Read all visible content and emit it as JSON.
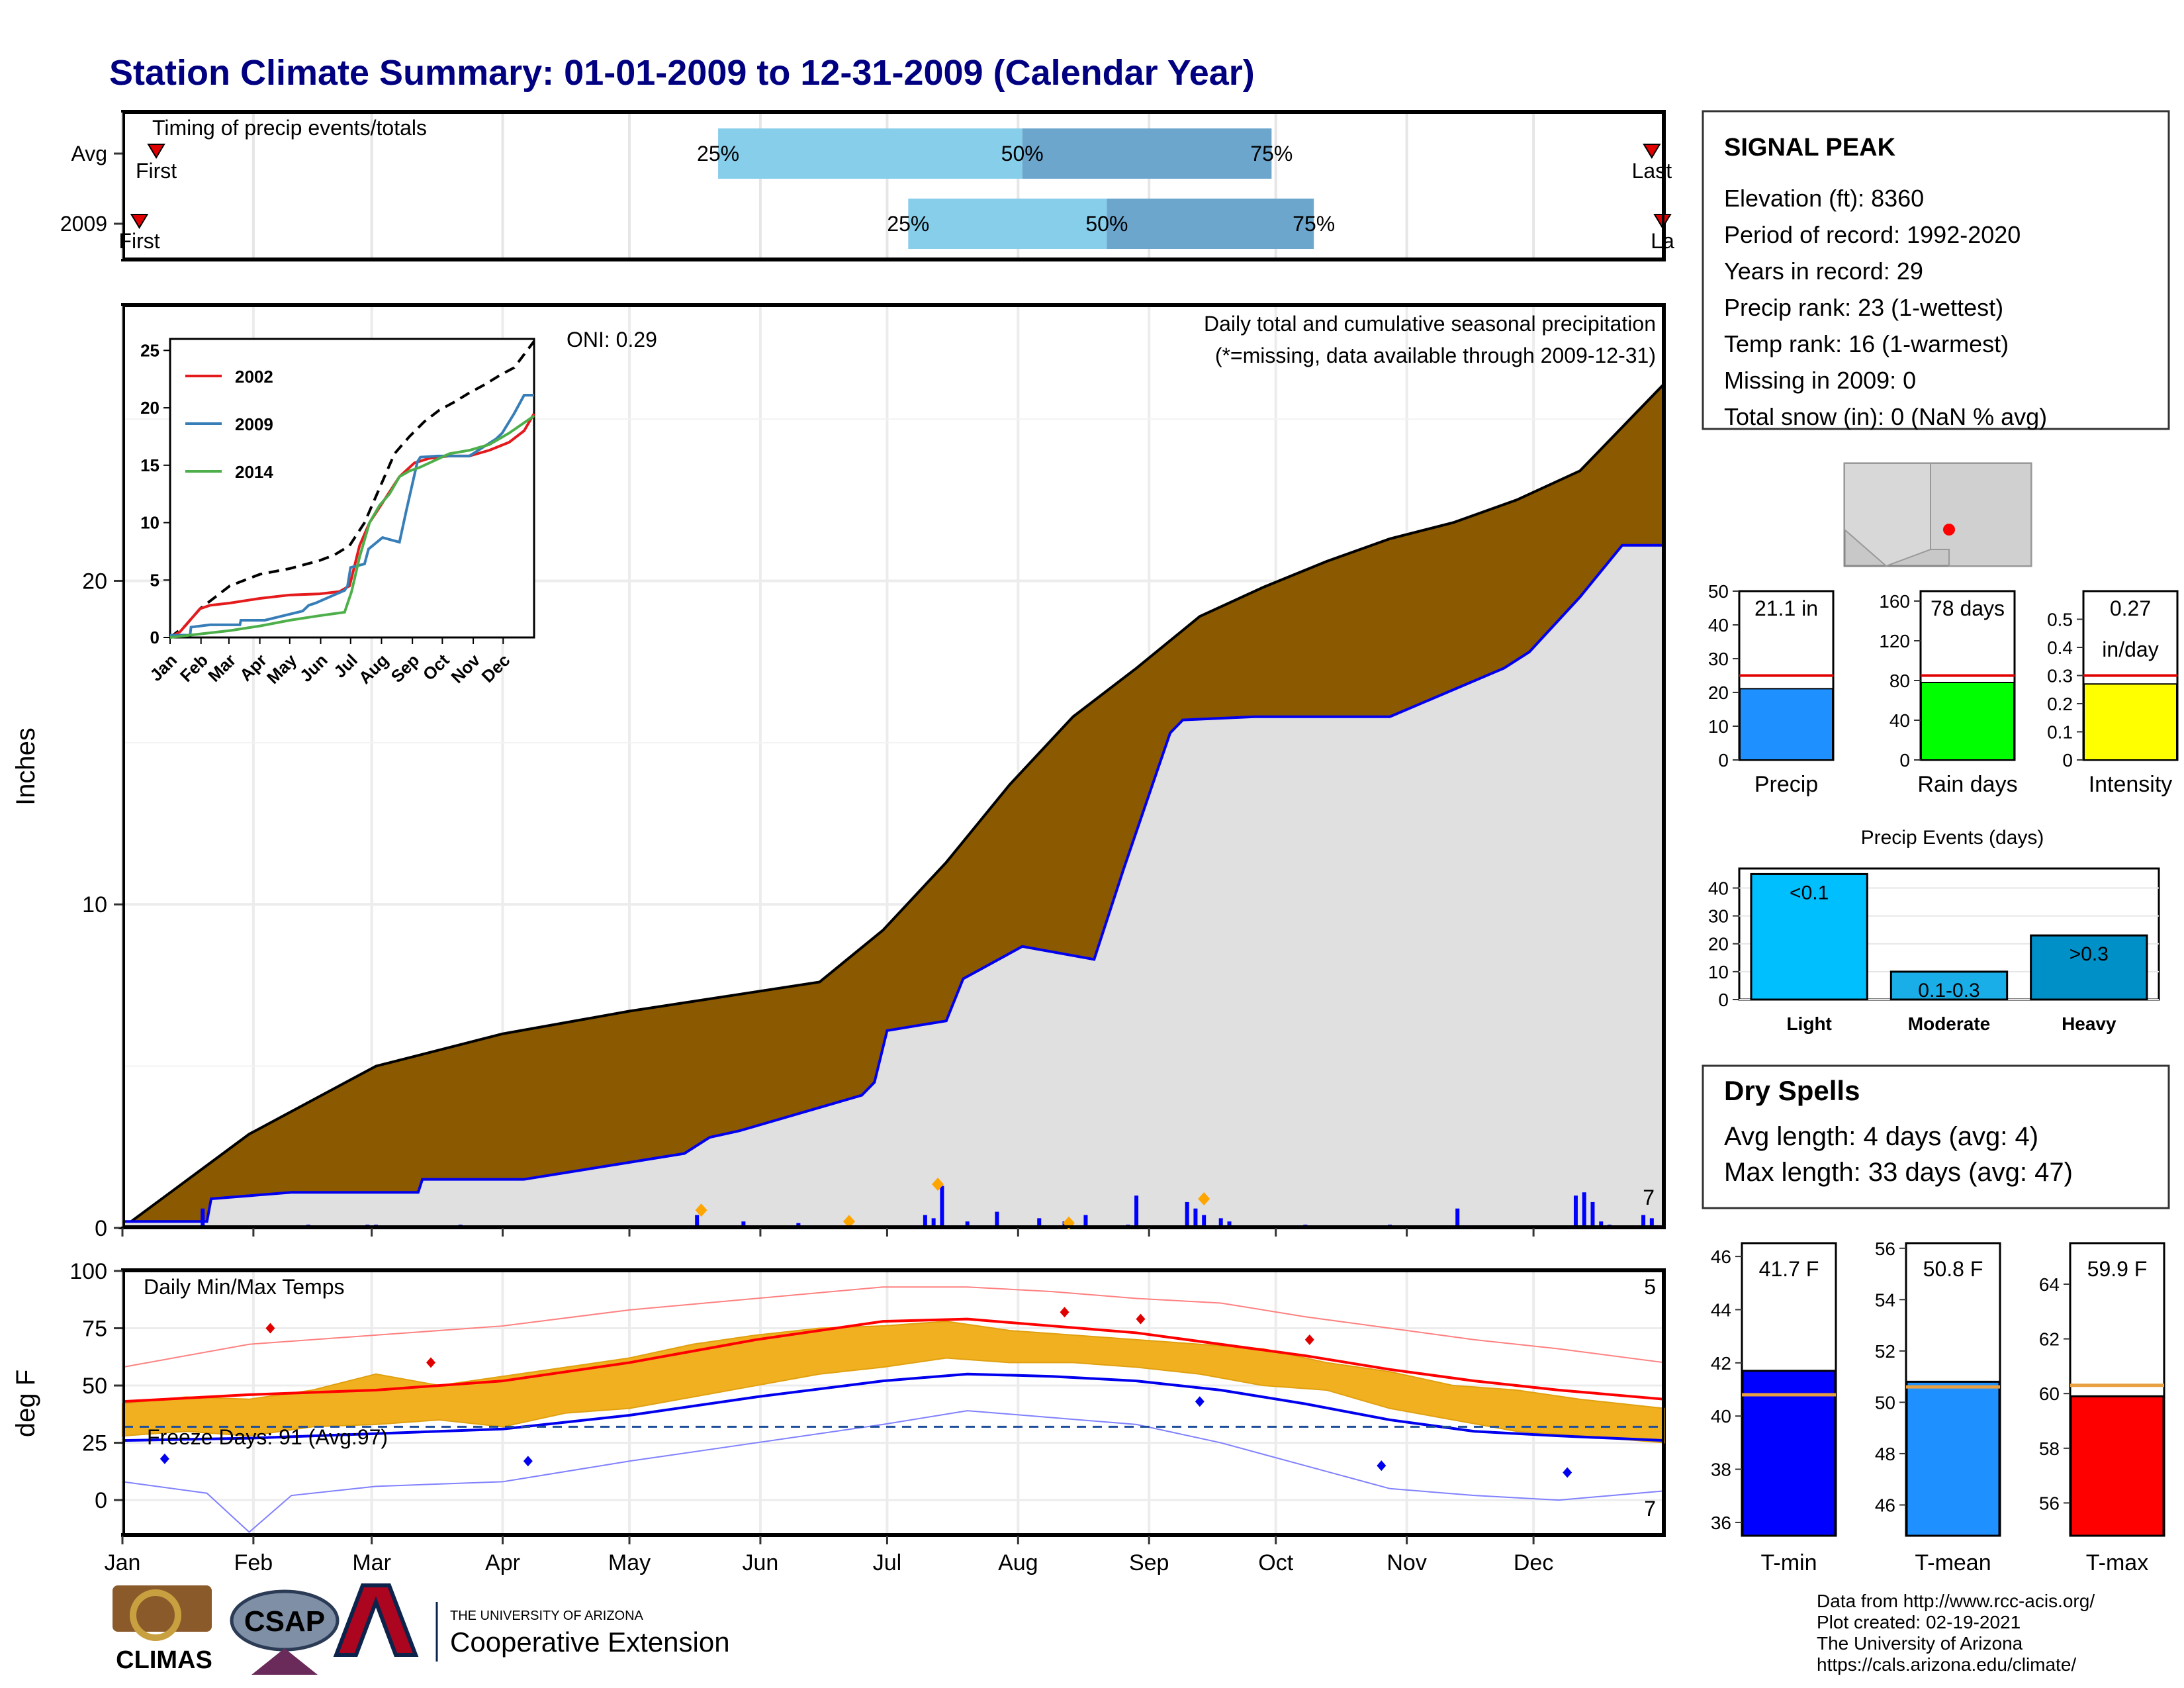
{
  "header": {
    "title": "Station Climate Summary: 01-01-2009 to 12-31-2009 (Calendar Year)"
  },
  "timing": {
    "title": "Timing of precip events/totals",
    "rows": [
      {
        "label": "Avg",
        "first_label": "First",
        "last_label": "Last",
        "first_doy": 8,
        "last_doy": 362,
        "p25_doy": 141,
        "p50_doy": 213,
        "p75_doy": 272,
        "p25_label": "25%",
        "p50_label": "50%",
        "p75_label": "75%"
      },
      {
        "label": "2009",
        "first_label": "First",
        "last_label": "La",
        "first_doy": 4,
        "last_doy": 368,
        "p25_doy": 186,
        "p50_doy": 233,
        "p75_doy": 282,
        "p25_label": "25%",
        "p50_label": "50%",
        "p75_label": "75%"
      }
    ]
  },
  "months": [
    "Jan",
    "Feb",
    "Mar",
    "Apr",
    "May",
    "Jun",
    "Jul",
    "Aug",
    "Sep",
    "Oct",
    "Nov",
    "Dec"
  ],
  "month_start_doy": [
    0,
    31,
    59,
    90,
    120,
    151,
    181,
    212,
    243,
    273,
    304,
    334
  ],
  "precip_panel": {
    "ylabel": "Inches",
    "yticks": [
      0,
      10,
      20
    ],
    "ylim": [
      0,
      28.5
    ],
    "title": "Daily total and cumulative seasonal precipitation",
    "missing_note": "(*=missing, data available through 2009-12-31)",
    "oni_label": "ONI: 0.29",
    "corner_count": "7",
    "avg_color": "#8B5A00",
    "obs_color": "#0000EE"
  },
  "chart_data": [
    {
      "type": "area",
      "name": "cumulative-precipitation",
      "x_unit": "day of year",
      "y_unit": "inches",
      "series": [
        {
          "name": "",
          "x": [
            0,
            30,
            60,
            90,
            120,
            150,
            165,
            180,
            195,
            210,
            225,
            240,
            255,
            270,
            285,
            300,
            315,
            330,
            345,
            365
          ],
          "values": [
            0,
            2.9,
            5.0,
            6.0,
            6.7,
            7.3,
            7.6,
            9.2,
            11.3,
            13.7,
            15.8,
            17.3,
            18.9,
            19.8,
            20.6,
            21.3,
            21.8,
            22.5,
            23.4,
            26.1
          ]
        },
        {
          "name": "",
          "x": [
            0,
            20,
            21,
            40,
            50,
            70,
            71,
            95,
            133,
            139,
            146,
            175,
            178,
            181,
            195,
            199,
            213,
            230,
            237,
            248,
            251,
            268,
            300,
            327,
            333,
            345,
            355,
            365
          ],
          "values": [
            0.2,
            0.2,
            0.9,
            1.1,
            1.1,
            1.1,
            1.5,
            1.5,
            2.3,
            2.8,
            3.0,
            4.1,
            4.5,
            6.1,
            6.4,
            7.7,
            8.7,
            8.3,
            11.1,
            15.3,
            15.7,
            15.8,
            15.8,
            17.3,
            17.8,
            19.5,
            21.1,
            21.1
          ]
        }
      ],
      "daily_totals": {
        "x": [
          19,
          44,
          46,
          58,
          60,
          80,
          88,
          110,
          136,
          147,
          160,
          190,
          192,
          194,
          200,
          207,
          217,
          223,
          228,
          238,
          240,
          252,
          254,
          256,
          260,
          262,
          280,
          300,
          316,
          344,
          346,
          348,
          350,
          352,
          360,
          362
        ],
        "values": [
          0.6,
          0.1,
          0.05,
          0.1,
          0.1,
          0.1,
          0.05,
          0.05,
          0.4,
          0.2,
          0.15,
          0.4,
          0.3,
          1.3,
          0.2,
          0.5,
          0.3,
          0.2,
          0.4,
          0.1,
          1.0,
          0.8,
          0.6,
          0.4,
          0.3,
          0.2,
          0.1,
          0.1,
          0.6,
          1.0,
          1.1,
          0.8,
          0.2,
          0.1,
          0.4,
          0.3
        ]
      },
      "daily_markers": {
        "x": [
          137,
          172,
          193,
          224,
          256
        ],
        "values": [
          0.55,
          0.2,
          1.35,
          0.15,
          0.9
        ]
      }
    },
    {
      "type": "line",
      "name": "inset-cumulative-comparison",
      "categories": [
        "Jan",
        "Feb",
        "Mar",
        "Apr",
        "May",
        "Jun",
        "Jul",
        "Aug",
        "Sep",
        "Oct",
        "Nov",
        "Dec"
      ],
      "ylim": [
        0,
        26
      ],
      "yticks": [
        0,
        5,
        10,
        15,
        20,
        25
      ],
      "series": [
        {
          "name": "",
          "x": [
            0,
            15,
            30,
            45,
            60,
            90,
            120,
            150,
            165,
            180,
            195,
            210,
            225,
            240,
            255,
            270,
            285,
            300,
            315,
            330,
            345,
            365
          ],
          "values": [
            0,
            1,
            2.5,
            3.5,
            4.5,
            5.5,
            6,
            6.7,
            7.2,
            8,
            10,
            13,
            16,
            17.5,
            18.8,
            19.8,
            20.5,
            21.3,
            22,
            22.8,
            23.5,
            25.8
          ]
        },
        {
          "name": "2002",
          "x": [
            0,
            10,
            20,
            30,
            40,
            60,
            90,
            120,
            150,
            170,
            180,
            190,
            200,
            215,
            230,
            245,
            260,
            280,
            300,
            320,
            340,
            355,
            365
          ],
          "values": [
            0,
            0.5,
            1.5,
            2.5,
            2.8,
            3.0,
            3.4,
            3.7,
            3.8,
            4.0,
            4.5,
            8,
            10,
            12,
            14,
            15.2,
            15.6,
            15.8,
            15.8,
            16.3,
            17.0,
            18.0,
            19.5
          ]
        },
        {
          "name": "2009",
          "x": [
            0,
            20,
            21,
            40,
            70,
            71,
            95,
            133,
            139,
            146,
            175,
            178,
            181,
            195,
            199,
            213,
            230,
            237,
            248,
            251,
            268,
            300,
            327,
            333,
            345,
            355,
            365
          ],
          "values": [
            0.2,
            0.2,
            0.9,
            1.1,
            1.1,
            1.5,
            1.5,
            2.3,
            2.8,
            3.0,
            4.1,
            4.5,
            6.1,
            6.4,
            7.7,
            8.7,
            8.3,
            11.1,
            15.3,
            15.7,
            15.8,
            15.8,
            17.3,
            17.8,
            19.5,
            21.1,
            21.1
          ]
        },
        {
          "name": "2014",
          "x": [
            0,
            30,
            60,
            90,
            120,
            150,
            175,
            182,
            190,
            200,
            210,
            220,
            230,
            240,
            250,
            260,
            280,
            300,
            320,
            340,
            365
          ],
          "values": [
            0,
            0.3,
            0.6,
            1.0,
            1.5,
            1.9,
            2.2,
            4,
            7,
            10,
            11.5,
            12.5,
            14,
            14.5,
            14.8,
            15.2,
            16,
            16.3,
            16.8,
            17.8,
            19.3
          ]
        }
      ],
      "legend_placement": "top-left"
    },
    {
      "type": "line",
      "name": "daily-temperatures",
      "title": "Daily Min/Max Temps",
      "ylabel": "deg F",
      "ylim": [
        -15,
        100
      ],
      "yticks": [
        0,
        25,
        50,
        75,
        100
      ],
      "freeze_label": "Freeze Days: 91 (Avg:97)",
      "freeze_line": 32,
      "max_count": "5",
      "min_count": "7",
      "series": [
        {
          "name": "",
          "x": [
            0,
            30,
            60,
            90,
            120,
            150,
            180,
            200,
            220,
            240,
            260,
            280,
            300,
            320,
            340,
            365
          ],
          "values": [
            43,
            46,
            48,
            52,
            60,
            70,
            78,
            79,
            76,
            73,
            68,
            63,
            57,
            52,
            48,
            44
          ]
        },
        {
          "name": "",
          "x": [
            0,
            30,
            60,
            90,
            120,
            150,
            180,
            200,
            220,
            240,
            260,
            280,
            300,
            320,
            340,
            365
          ],
          "values": [
            26,
            27,
            29,
            31,
            37,
            45,
            52,
            55,
            54,
            52,
            48,
            42,
            35,
            30,
            28,
            26
          ]
        },
        {
          "name": "",
          "x": [
            0,
            30,
            60,
            90,
            120,
            150,
            180,
            200,
            220,
            240,
            260,
            280,
            300,
            320,
            340,
            365
          ],
          "values": [
            58,
            68,
            72,
            76,
            83,
            88,
            93,
            93,
            91,
            88,
            86,
            80,
            75,
            70,
            66,
            60
          ]
        },
        {
          "name": "",
          "x": [
            0,
            20,
            30,
            40,
            60,
            90,
            120,
            150,
            180,
            200,
            220,
            240,
            260,
            280,
            300,
            320,
            340,
            365
          ],
          "values": [
            8,
            3,
            -14,
            2,
            6,
            8,
            17,
            25,
            33,
            39,
            36,
            33,
            25,
            15,
            5,
            2,
            0,
            4
          ]
        }
      ],
      "bar_band": {
        "x": [
          0,
          15,
          30,
          45,
          60,
          75,
          90,
          105,
          120,
          135,
          150,
          165,
          180,
          195,
          210,
          225,
          240,
          255,
          270,
          285,
          300,
          315,
          330,
          345,
          365
        ],
        "low": [
          28,
          30,
          28,
          32,
          33,
          35,
          32,
          38,
          40,
          45,
          50,
          55,
          58,
          62,
          60,
          60,
          58,
          55,
          50,
          48,
          40,
          35,
          30,
          28,
          25
        ],
        "high": [
          42,
          45,
          44,
          48,
          55,
          50,
          54,
          58,
          62,
          68,
          72,
          75,
          76,
          78,
          74,
          72,
          70,
          68,
          66,
          60,
          56,
          50,
          48,
          44,
          40
        ]
      },
      "max_markers": {
        "x": [
          35,
          73,
          223,
          241,
          281
        ],
        "values": [
          75,
          60,
          82,
          79,
          70
        ]
      },
      "min_markers": {
        "x": [
          10,
          96,
          255,
          298,
          342
        ],
        "values": [
          18,
          17,
          43,
          15,
          12
        ]
      }
    }
  ],
  "station": {
    "name": "SIGNAL PEAK",
    "lines": [
      "Elevation (ft): 8360",
      "Period of record: 1992-2020",
      "Years in record: 29",
      "Precip rank: 23 (1-wettest)",
      "Temp rank: 16 (1-warmest)",
      "Missing in 2009: 0",
      "Total snow (in): 0 (NaN % avg)"
    ]
  },
  "summary_bars": [
    {
      "name": "Precip",
      "value": 21.1,
      "avg": 25,
      "label_top": "21.1 in",
      "label_bottom": "",
      "ymax": 50,
      "yticks": [
        0,
        10,
        20,
        30,
        40,
        50
      ],
      "color": "#1E90FF"
    },
    {
      "name": "Rain days",
      "value": 78,
      "avg": 85,
      "label_top": "78 days",
      "label_bottom": "",
      "ymax": 170,
      "yticks": [
        0,
        40,
        80,
        120,
        160
      ],
      "color": "#00FF00"
    },
    {
      "name": "Intensity",
      "value": 0.27,
      "avg": 0.3,
      "label_top": "0.27",
      "label_bottom": "in/day",
      "ymax": 0.6,
      "yticks": [
        0.0,
        0.1,
        0.2,
        0.3,
        0.4,
        0.5
      ],
      "color": "#FFFF00"
    }
  ],
  "precip_events": {
    "title": "Precip Events (days)",
    "yticks": [
      0,
      10,
      20,
      30,
      40
    ],
    "ymax": 47,
    "bars": [
      {
        "category": "Light",
        "value": 45,
        "label": "<0.1",
        "color": "#00BFFF"
      },
      {
        "category": "Moderate",
        "value": 10,
        "label": "0.1-0.3",
        "color": "#1AAEE8"
      },
      {
        "category": "Heavy",
        "value": 23,
        "label": ">0.3",
        "color": "#0090C8"
      }
    ]
  },
  "dry_spells": {
    "title": "Dry Spells",
    "avg_line": "Avg length: 4 days (avg: 4)",
    "max_line": "Max length: 33 days (avg: 47)"
  },
  "temp_bars": [
    {
      "name": "T-min",
      "value": 41.7,
      "avg": 40.8,
      "label": "41.7 F",
      "ymin": 35.5,
      "ymax": 46.5,
      "yticks": [
        36,
        38,
        40,
        42,
        44,
        46
      ],
      "color": "#0000FF"
    },
    {
      "name": "T-mean",
      "value": 50.8,
      "avg": 50.6,
      "label": "50.8 F",
      "ymin": 44.8,
      "ymax": 56.2,
      "yticks": [
        46,
        48,
        50,
        52,
        54,
        56
      ],
      "color": "#1E90FF"
    },
    {
      "name": "T-max",
      "value": 59.9,
      "avg": 60.3,
      "label": "59.9 F",
      "ymin": 54.8,
      "ymax": 65.5,
      "yticks": [
        56,
        58,
        60,
        62,
        64
      ],
      "color": "#FF0000"
    }
  ],
  "footer": {
    "credits": [
      "Data from http://www.rcc-acis.org/",
      "Plot created: 02-19-2021",
      "The University of Arizona",
      "https://cals.arizona.edu/climate/"
    ],
    "logo_climas": "CLIMAS",
    "logo_csap": "CSAP",
    "logo_ua_small": "THE UNIVERSITY OF ARIZONA",
    "logo_ua_big": "Cooperative Extension"
  }
}
